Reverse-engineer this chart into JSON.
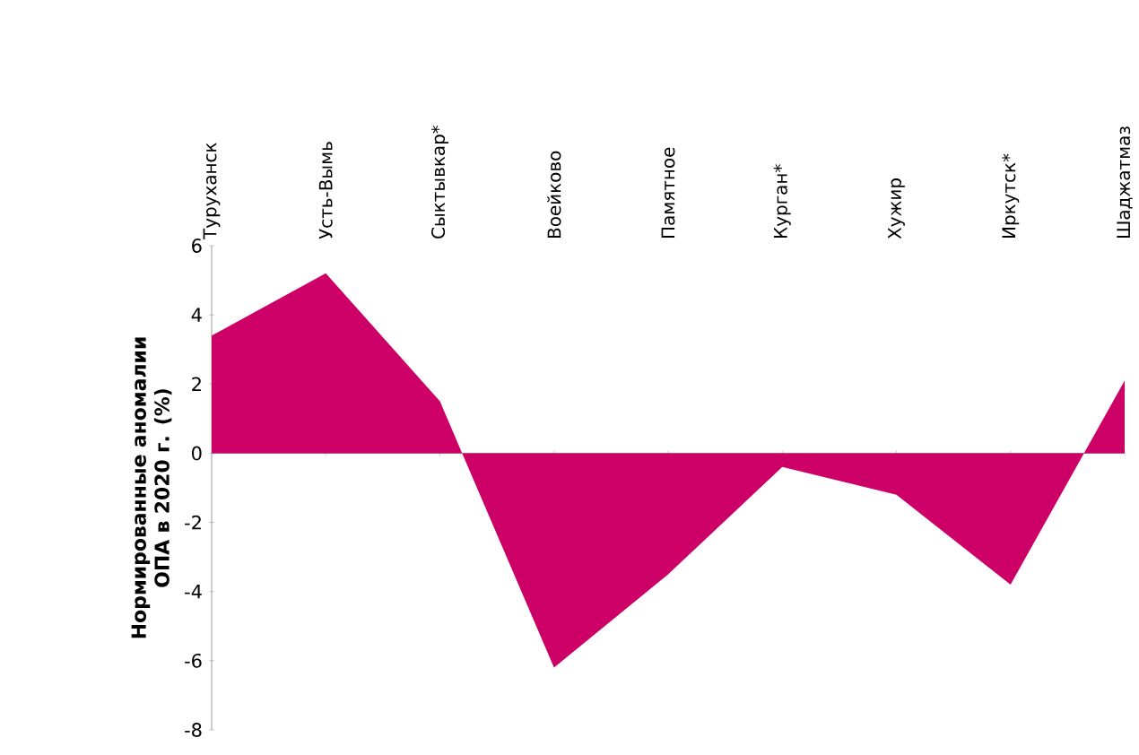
{
  "chart_data": {
    "type": "area",
    "ylabel": "Нормированные аномалии ОПА в 2020 г. (%)",
    "categories": [
      "Туруханск",
      "Усть-Вымь",
      "Сыктывкар*",
      "Воейково",
      "Памятное",
      "Курган*",
      "Хужир",
      "Иркутск*",
      "Шаджатмаз"
    ],
    "values": [
      3.4,
      5.2,
      1.5,
      -6.2,
      -3.5,
      -0.4,
      -1.2,
      -3.8,
      2.1
    ],
    "color": "#cc0066",
    "ylim": [
      -8,
      6
    ],
    "yticks": [
      -8,
      -6,
      -4,
      -2,
      0,
      2,
      4,
      6
    ]
  }
}
